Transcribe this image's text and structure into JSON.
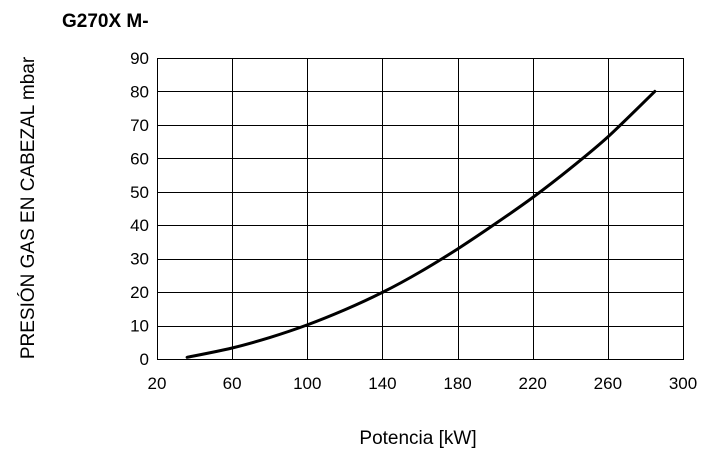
{
  "chart_data": {
    "type": "line",
    "title": "G270X  M-",
    "xlabel": "Potencia [kW]",
    "ylabel": "PRESIÓN GAS EN CABEZAL mbar",
    "xlim": [
      20,
      300
    ],
    "ylim": [
      0,
      90
    ],
    "xticks": [
      20,
      60,
      100,
      140,
      180,
      220,
      260,
      300
    ],
    "yticks": [
      0,
      10,
      20,
      30,
      40,
      50,
      60,
      70,
      80,
      90
    ],
    "grid": true,
    "legend": "none",
    "series": [
      {
        "x": [
          36,
          60,
          80,
          100,
          120,
          140,
          160,
          180,
          200,
          220,
          240,
          260,
          285
        ],
        "y": [
          0.5,
          3.3,
          6.4,
          10.2,
          14.7,
          19.9,
          26.0,
          32.9,
          40.4,
          48.3,
          57.0,
          66.4,
          80.0
        ]
      }
    ]
  }
}
